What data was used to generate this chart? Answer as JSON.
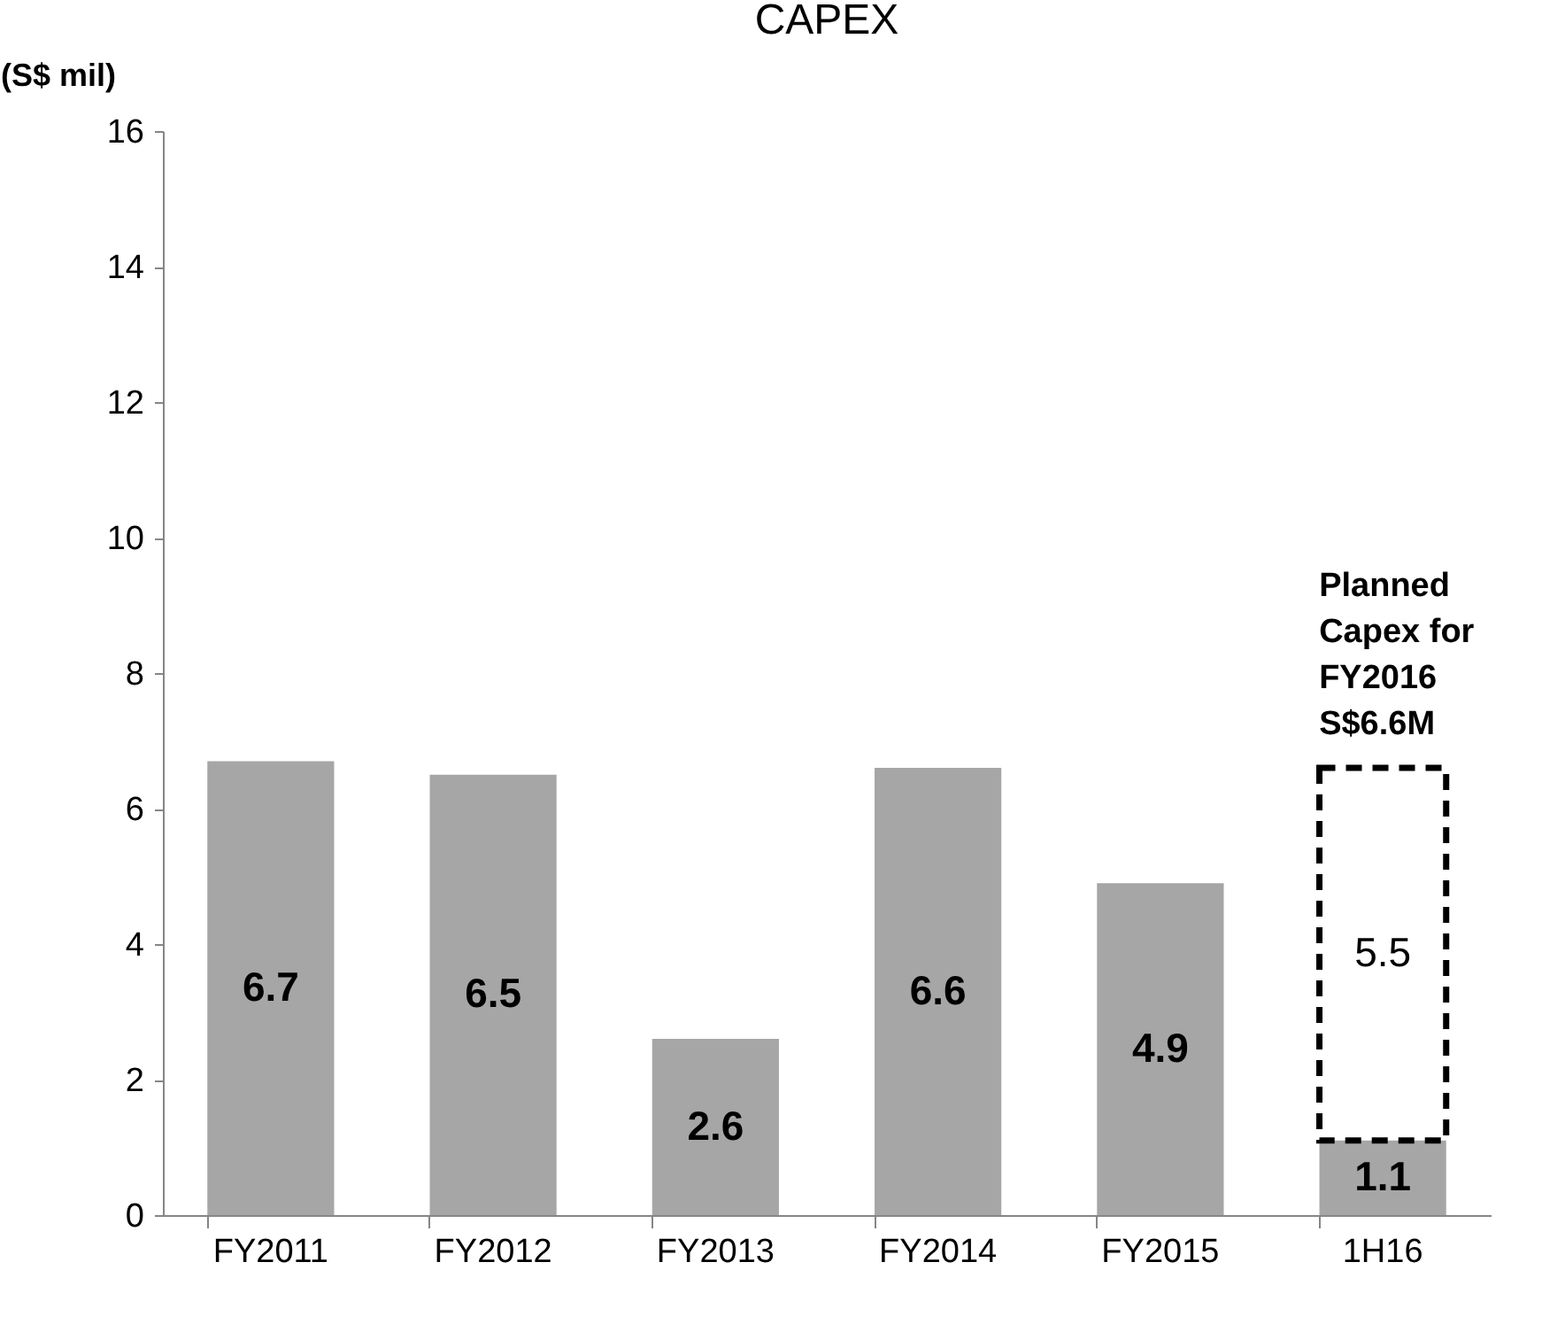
{
  "chart_data": {
    "type": "bar",
    "title": "CAPEX",
    "ylabel": "(S$ mil)",
    "categories": [
      "FY2011",
      "FY2012",
      "FY2013",
      "FY2014",
      "FY2015",
      "1H16"
    ],
    "stacked": true,
    "series": [
      {
        "color": "#a6a6a6",
        "values": [
          6.7,
          6.5,
          2.6,
          6.6,
          4.9,
          1.1
        ]
      },
      {
        "color": "#000000",
        "line_style": "dashed",
        "values": [
          null,
          null,
          null,
          null,
          null,
          5.5
        ]
      }
    ],
    "ylim": [
      0,
      16
    ],
    "yticks": [
      0,
      2,
      4,
      6,
      8,
      10,
      12,
      14,
      16
    ],
    "grid": false,
    "data_labels": true,
    "annotations": [
      {
        "text": "Planned\nCapex for\nFY2016\nS$6.6M",
        "x": "1H16",
        "y": 6.6
      }
    ]
  }
}
